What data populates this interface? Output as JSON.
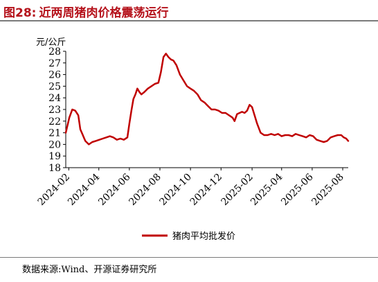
{
  "title": {
    "label": "图28:",
    "text": "近两周猪肉价格震荡运行"
  },
  "source": "数据来源:Wind、开源证券研究所",
  "colors": {
    "title": "#b5121b",
    "line": "#c00000",
    "axis": "#000000"
  },
  "chart_data": {
    "type": "line",
    "title": "",
    "xlabel": "",
    "ylabel": "元/公斤",
    "ylim": [
      18,
      28
    ],
    "yticks": [
      18,
      19,
      20,
      21,
      22,
      23,
      24,
      25,
      26,
      27,
      28
    ],
    "xticks": [
      "2024-02",
      "2024-04",
      "2024-06",
      "2024-08",
      "2024-10",
      "2024-12",
      "2025-02",
      "2025-04",
      "2025-06",
      "2025-08"
    ],
    "grid": false,
    "legend": "bottom",
    "series": [
      {
        "name": "猪肉平均批发价",
        "x": [
          "2024-01-26",
          "2024-02-02",
          "2024-02-08",
          "2024-02-14",
          "2024-02-20",
          "2024-02-24",
          "2024-02-28",
          "2024-03-05",
          "2024-03-12",
          "2024-03-19",
          "2024-03-26",
          "2024-04-02",
          "2024-04-09",
          "2024-04-16",
          "2024-04-23",
          "2024-04-30",
          "2024-05-07",
          "2024-05-14",
          "2024-05-21",
          "2024-05-28",
          "2024-06-01",
          "2024-06-05",
          "2024-06-09",
          "2024-06-13",
          "2024-06-17",
          "2024-06-21",
          "2024-06-25",
          "2024-07-01",
          "2024-07-08",
          "2024-07-15",
          "2024-07-22",
          "2024-07-29",
          "2024-08-03",
          "2024-08-08",
          "2024-08-13",
          "2024-08-18",
          "2024-08-23",
          "2024-08-28",
          "2024-09-03",
          "2024-09-10",
          "2024-09-17",
          "2024-09-24",
          "2024-10-01",
          "2024-10-08",
          "2024-10-15",
          "2024-10-22",
          "2024-10-29",
          "2024-11-05",
          "2024-11-12",
          "2024-11-19",
          "2024-11-26",
          "2024-12-03",
          "2024-12-10",
          "2024-12-17",
          "2024-12-24",
          "2024-12-28",
          "2025-01-02",
          "2025-01-07",
          "2025-01-12",
          "2025-01-17",
          "2025-01-22",
          "2025-01-27",
          "2025-02-01",
          "2025-02-06",
          "2025-02-11",
          "2025-02-18",
          "2025-02-25",
          "2025-03-04",
          "2025-03-11",
          "2025-03-18",
          "2025-03-25",
          "2025-04-01",
          "2025-04-08",
          "2025-04-15",
          "2025-04-22",
          "2025-04-29",
          "2025-05-06",
          "2025-05-13",
          "2025-05-20",
          "2025-05-27",
          "2025-06-03",
          "2025-06-10",
          "2025-06-17",
          "2025-06-24",
          "2025-07-01",
          "2025-07-08",
          "2025-07-15",
          "2025-07-22",
          "2025-07-29",
          "2025-08-03",
          "2025-08-08",
          "2025-08-12"
        ],
        "values": [
          21.0,
          22.3,
          23.0,
          22.9,
          22.5,
          21.3,
          20.9,
          20.3,
          20.0,
          20.2,
          20.3,
          20.4,
          20.5,
          20.6,
          20.7,
          20.6,
          20.4,
          20.5,
          20.4,
          20.6,
          21.8,
          22.9,
          23.9,
          24.3,
          24.8,
          24.5,
          24.3,
          24.5,
          24.8,
          25.0,
          25.2,
          25.3,
          26.2,
          27.5,
          27.8,
          27.5,
          27.3,
          27.2,
          26.8,
          26.0,
          25.5,
          25.0,
          24.8,
          24.6,
          24.3,
          23.8,
          23.6,
          23.3,
          23.0,
          23.0,
          22.9,
          22.7,
          22.7,
          22.5,
          22.3,
          22.0,
          22.6,
          22.7,
          22.8,
          22.7,
          22.9,
          23.4,
          23.2,
          22.5,
          21.8,
          21.0,
          20.8,
          20.8,
          20.9,
          20.8,
          20.9,
          20.7,
          20.8,
          20.8,
          20.7,
          20.9,
          20.8,
          20.7,
          20.6,
          20.8,
          20.7,
          20.4,
          20.3,
          20.2,
          20.3,
          20.6,
          20.7,
          20.8,
          20.8,
          20.6,
          20.5,
          20.3
        ]
      }
    ]
  }
}
